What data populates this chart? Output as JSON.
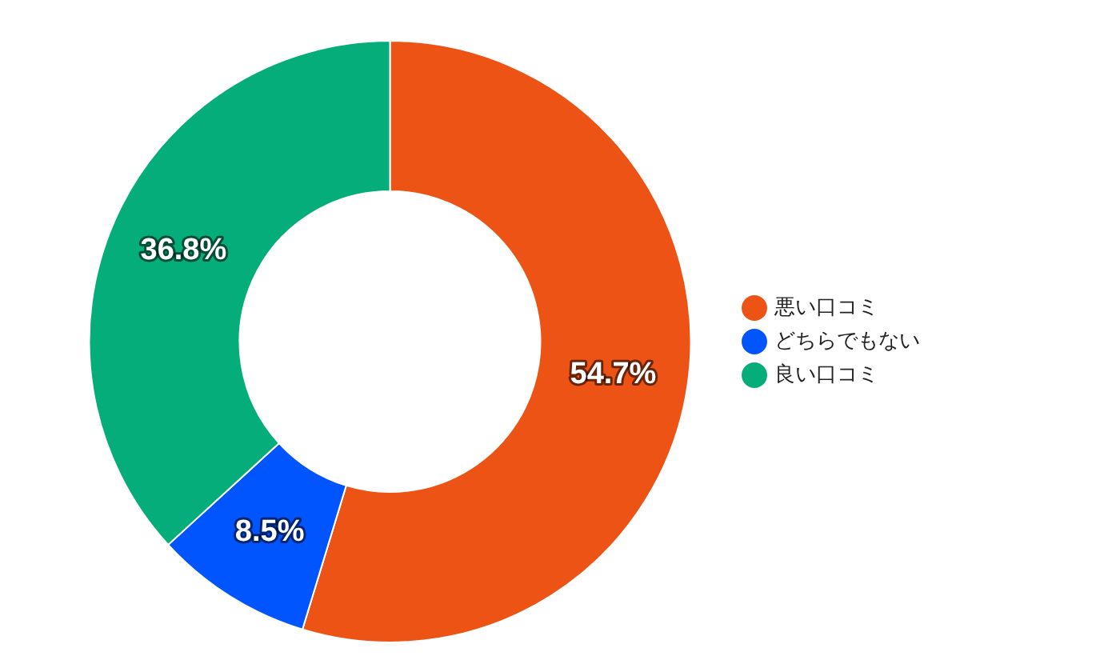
{
  "chart_data": {
    "type": "donut",
    "categories": [
      "悪い口コミ",
      "どちらでもない",
      "良い口コミ"
    ],
    "values": [
      54.7,
      8.5,
      36.8
    ],
    "colors": [
      "#ec5314",
      "#0055ff",
      "#04ad79"
    ],
    "value_labels": [
      "54.7%",
      "8.5%",
      "36.8%"
    ],
    "legend": "right"
  }
}
